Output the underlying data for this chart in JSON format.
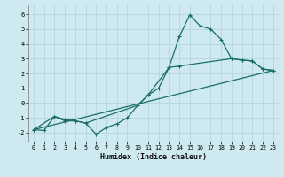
{
  "xlabel": "Humidex (Indice chaleur)",
  "bg_color": "#ceeaf0",
  "grid_color": "#b8d8e0",
  "line_color": "#1a6e65",
  "xlim": [
    -0.5,
    23.5
  ],
  "ylim": [
    -2.6,
    6.6
  ],
  "xticks": [
    0,
    1,
    2,
    3,
    4,
    5,
    6,
    7,
    8,
    9,
    10,
    11,
    12,
    13,
    14,
    15,
    16,
    17,
    18,
    19,
    20,
    21,
    22,
    23
  ],
  "yticks": [
    -2,
    -1,
    0,
    1,
    2,
    3,
    4,
    5,
    6
  ],
  "line1_x": [
    0,
    1,
    2,
    3,
    4,
    5,
    6,
    7,
    8,
    9,
    10,
    11,
    12,
    13,
    14,
    15,
    16,
    17,
    18,
    19,
    20,
    21,
    22,
    23
  ],
  "line1_y": [
    -1.8,
    -1.85,
    -0.9,
    -1.2,
    -1.2,
    -1.35,
    -2.1,
    -1.65,
    -1.4,
    -1.0,
    -0.15,
    0.55,
    1.0,
    2.4,
    4.5,
    5.95,
    5.2,
    5.0,
    4.3,
    3.0,
    2.9,
    2.85,
    2.3,
    2.2
  ],
  "line2_x": [
    0,
    2,
    3,
    4,
    5,
    10,
    11,
    13,
    14,
    19,
    20,
    21,
    22,
    23
  ],
  "line2_y": [
    -1.8,
    -0.9,
    -1.1,
    -1.2,
    -1.35,
    -0.15,
    0.55,
    2.4,
    2.5,
    3.0,
    2.9,
    2.85,
    2.3,
    2.2
  ],
  "line3_x": [
    0,
    23
  ],
  "line3_y": [
    -1.8,
    2.2
  ]
}
